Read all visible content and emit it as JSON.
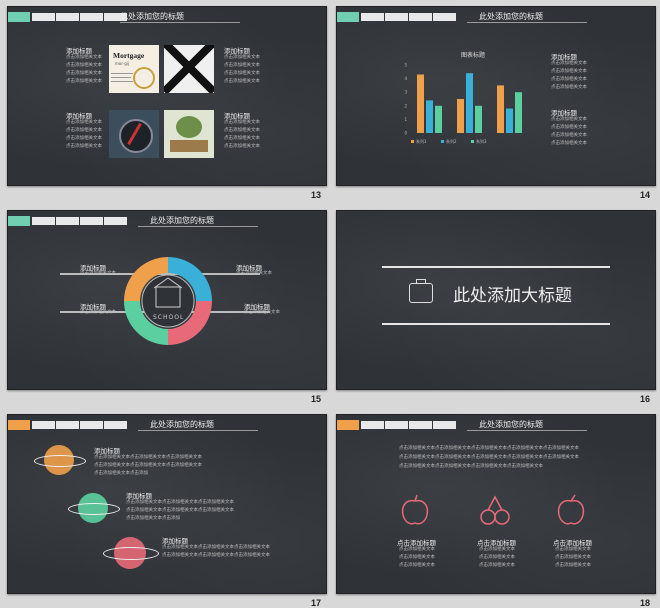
{
  "slides": {
    "s13": {
      "number": "13",
      "title": "此处添加您的标题",
      "blocks": [
        {
          "heading": "添加标题",
          "lines": [
            "点击添加相关文本",
            "点击添加相关文本",
            "点击添加相关文本",
            "点击添加相关文本"
          ]
        },
        {
          "heading": "添加标题",
          "lines": [
            "点击添加相关文本",
            "点击添加相关文本",
            "点击添加相关文本",
            "点击添加相关文本"
          ]
        },
        {
          "heading": "添加标题",
          "lines": [
            "点击添加相关文本",
            "点击添加相关文本",
            "点击添加相关文本",
            "点击添加相关文本"
          ]
        },
        {
          "heading": "添加标题",
          "lines": [
            "点击添加相关文本",
            "点击添加相关文本",
            "点击添加相关文本",
            "点击添加相关文本"
          ]
        }
      ],
      "image_words": {
        "big": "Mortgage",
        "small": "mor·gij"
      }
    },
    "s14": {
      "number": "14",
      "title": "此处添加您的标题",
      "chart_title": "图表标题",
      "blocks": [
        {
          "heading": "添加标题",
          "lines": [
            "点击添加相关文本",
            "点击添加相关文本",
            "点击添加相关文本",
            "点击添加相关文本"
          ]
        },
        {
          "heading": "添加标题",
          "lines": [
            "点击添加相关文本",
            "点击添加相关文本",
            "点击添加相关文本",
            "点击添加相关文本"
          ]
        }
      ]
    },
    "s15": {
      "number": "15",
      "title": "此处添加您的标题",
      "labels": [
        {
          "heading": "添加标题",
          "line": "点击添加相关文本"
        },
        {
          "heading": "添加标题",
          "line": "点击添加相关文本"
        },
        {
          "heading": "添加标题",
          "line": "点击添加相关文本"
        },
        {
          "heading": "添加标题",
          "line": "点击添加相关文本"
        }
      ],
      "badge": "SCHOOL"
    },
    "s16": {
      "number": "16",
      "title": "此处添加大标题"
    },
    "s17": {
      "number": "17",
      "title": "此处添加您的标题",
      "blocks": [
        {
          "heading": "添加标题",
          "lines": [
            "点击添加相关文本点击添加相关文本点击添加相关文本",
            "点击添加相关文本点击添加相关文本点击添加相关文本",
            "点击添加相关文本点击添加"
          ]
        },
        {
          "heading": "添加标题",
          "lines": [
            "点击添加相关文本点击添加相关文本点击添加相关文本",
            "点击添加相关文本点击添加相关文本点击添加相关文本",
            "点击添加相关文本点击添加"
          ]
        },
        {
          "heading": "添加标题",
          "lines": [
            "点击添加相关文本点击添加相关文本点击添加相关文本",
            "点击添加相关文本点击添加相关文本点击添加相关文本"
          ]
        }
      ]
    },
    "s18": {
      "number": "18",
      "title": "此处添加您的标题",
      "intro": [
        "点击添加相关文本点击添加相关文本点击添加相关文本点击添加相关文本点击添加相关文本",
        "点击添加相关文本点击添加相关文本点击添加相关文本点击添加相关文本点击添加相关文本",
        "点击添加相关文本点击添加相关文本点击添加相关文本点击添加相关文本"
      ],
      "items": [
        {
          "heading": "点击添加标题",
          "lines": [
            "点击添加相关文本",
            "点击添加相关文本",
            "点击添加相关文本"
          ]
        },
        {
          "heading": "点击添加标题",
          "lines": [
            "点击添加相关文本",
            "点击添加相关文本",
            "点击添加相关文本"
          ]
        },
        {
          "heading": "点击添加标题",
          "lines": [
            "点击添加相关文本",
            "点击添加相关文本",
            "点击添加相关文本"
          ]
        }
      ]
    }
  },
  "colors": {
    "orange": "#f0a04a",
    "blue": "#3ab0d8",
    "green": "#5ccfa0",
    "red": "#e86a78",
    "teal_stripe": "#6fcfb0",
    "orange_stripe": "#f0a04a"
  },
  "chart_data": {
    "type": "bar",
    "title": "图表标题",
    "categories": [
      "",
      "",
      ""
    ],
    "series": [
      {
        "name": "系列1",
        "values": [
          4.3,
          2.5,
          3.5
        ]
      },
      {
        "name": "系列2",
        "values": [
          2.4,
          4.4,
          1.8
        ]
      },
      {
        "name": "系列3",
        "values": [
          2.0,
          2.0,
          3.0
        ]
      }
    ],
    "ylim": [
      0,
      5
    ],
    "yticks": [
      "0",
      "1",
      "2",
      "3",
      "4",
      "5"
    ]
  }
}
